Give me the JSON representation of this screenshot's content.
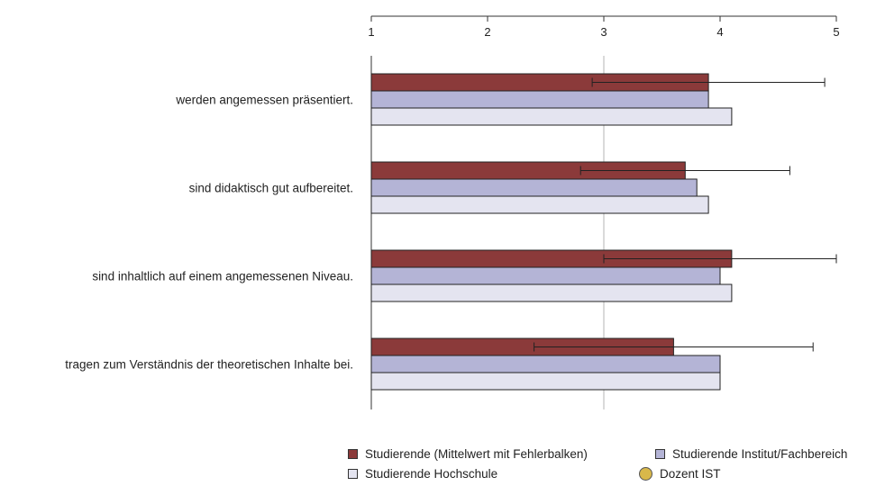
{
  "chart_data": {
    "type": "bar",
    "orientation": "horizontal",
    "xlim": [
      1,
      5
    ],
    "x_ticks": [
      "1",
      "2",
      "3",
      "4",
      "5"
    ],
    "categories": [
      "werden angemessen präsentiert.",
      "sind didaktisch gut aufbereitet.",
      "sind inhaltlich auf einem angemessenen Niveau.",
      "tragen zum Verständnis der theoretischen Inhalte bei."
    ],
    "series": [
      {
        "name": "Studierende (Mittelwert mit Fehlerbalken)",
        "color": "#8b3a3a",
        "values": [
          3.9,
          3.7,
          4.1,
          3.6
        ],
        "error_low": [
          2.9,
          2.8,
          3.0,
          2.4
        ],
        "error_high": [
          4.9,
          4.6,
          5.0,
          4.8
        ]
      },
      {
        "name": "Studierende Institut/Fachbereich",
        "color": "#b4b4d6",
        "values": [
          3.9,
          3.8,
          4.0,
          4.0
        ]
      },
      {
        "name": "Studierende Hochschule",
        "color": "#e4e4f0",
        "values": [
          4.1,
          3.9,
          4.1,
          4.0
        ]
      }
    ],
    "reference_line": 3,
    "legend": {
      "placement": "bottom",
      "items": [
        {
          "label": "Studierende (Mittelwert mit Fehlerbalken)",
          "color": "#8b3a3a",
          "shape": "square"
        },
        {
          "label": "Studierende Institut/Fachbereich",
          "color": "#b4b4d6",
          "shape": "square"
        },
        {
          "label": "Studierende Hochschule",
          "color": "#e4e4f0",
          "shape": "square"
        },
        {
          "label": "Dozent IST",
          "color": "#d9b84a",
          "shape": "circle"
        }
      ]
    }
  }
}
